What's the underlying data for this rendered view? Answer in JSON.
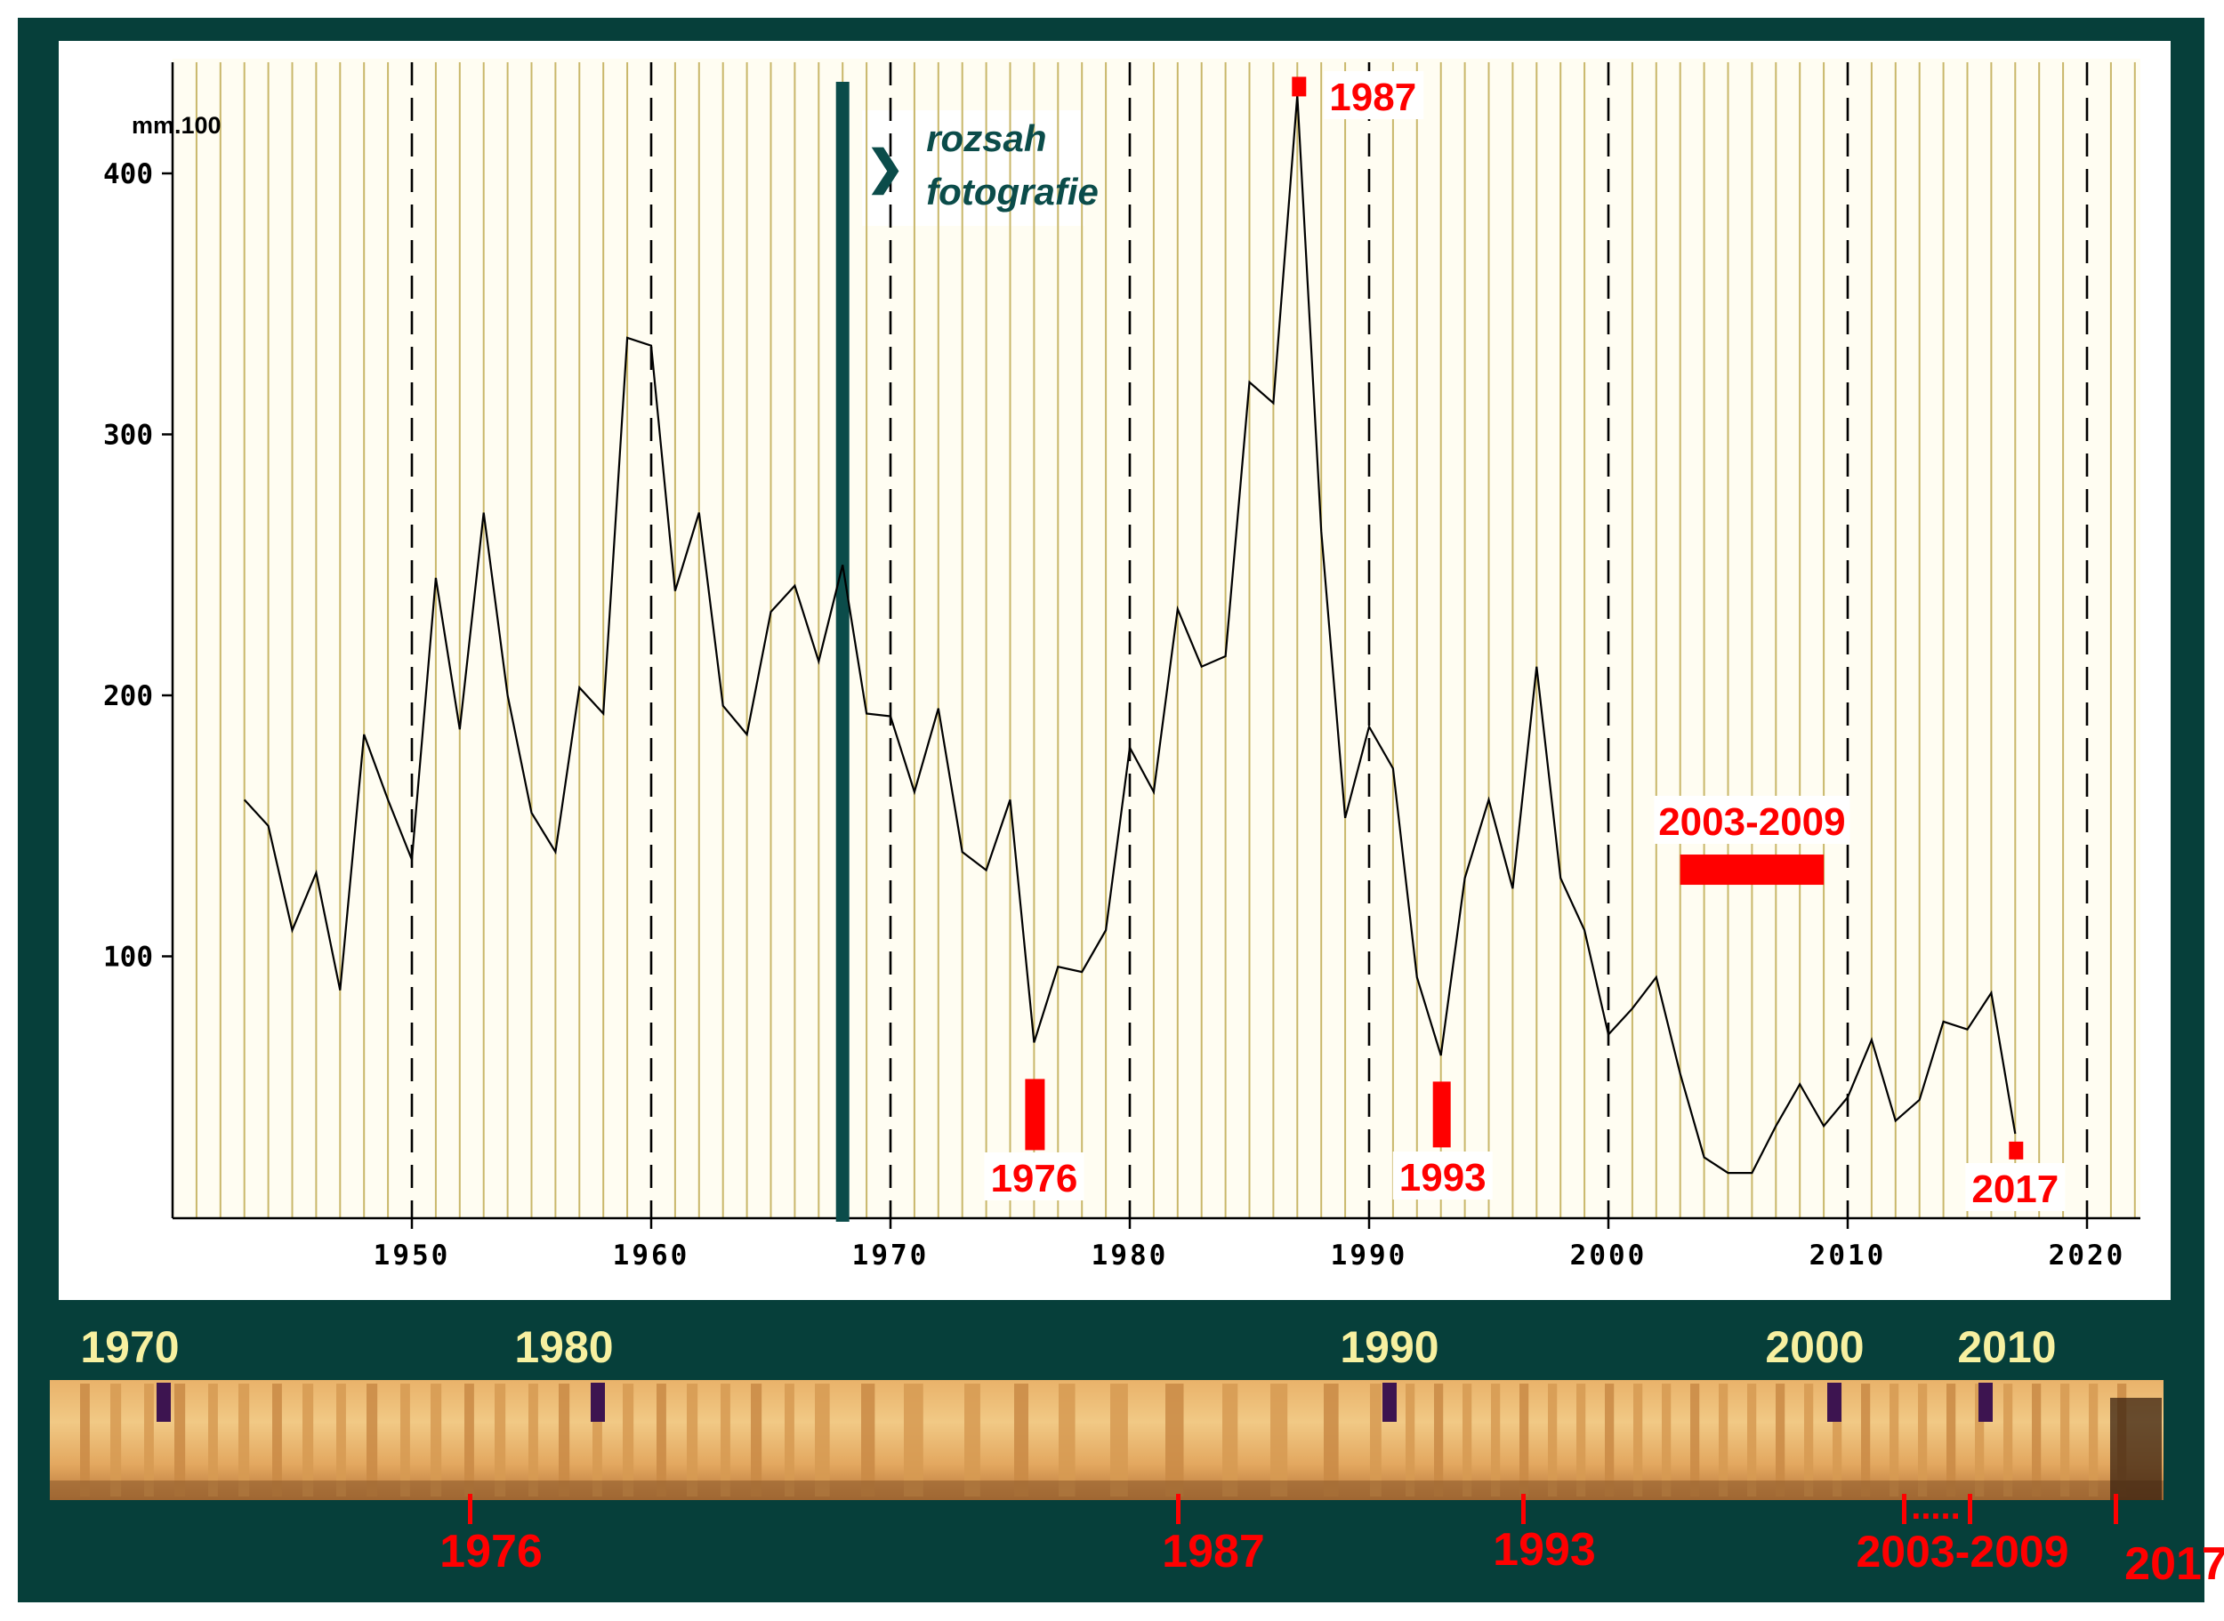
{
  "chart_data": {
    "type": "line",
    "title": "",
    "xlabel": "",
    "ylabel": "mm.100",
    "xlim": [
      1940,
      2022
    ],
    "ylim": [
      0,
      440
    ],
    "x_ticks": [
      1950,
      1960,
      1970,
      1980,
      1990,
      2000,
      2010,
      2020
    ],
    "y_ticks": [
      100,
      200,
      300,
      400
    ],
    "grid": "vertical yearly lines, dashed every decade",
    "background": "#fffdf2",
    "line_color": "#000000",
    "series": [
      {
        "x": [
          1943,
          1944,
          1945,
          1946,
          1947,
          1948,
          1949,
          1950,
          1951,
          1952,
          1953,
          1954,
          1955,
          1956,
          1957,
          1958,
          1959,
          1960,
          1961,
          1962,
          1963,
          1964,
          1965,
          1966,
          1967,
          1968,
          1969,
          1970,
          1971,
          1972,
          1973,
          1974,
          1975,
          1976,
          1977,
          1978,
          1979,
          1980,
          1981,
          1982,
          1983,
          1984,
          1985,
          1986,
          1987,
          1988,
          1989,
          1990,
          1991,
          1992,
          1993,
          1994,
          1995,
          1996,
          1997,
          1998,
          1999,
          2000,
          2001,
          2002,
          2003,
          2004,
          2005,
          2006,
          2007,
          2008,
          2009,
          2010,
          2011,
          2012,
          2013,
          2014,
          2015,
          2016,
          2017
        ],
        "values": [
          160,
          150,
          110,
          132,
          87,
          185,
          160,
          137,
          245,
          187,
          270,
          200,
          155,
          140,
          203,
          193,
          337,
          334,
          240,
          270,
          196,
          185,
          232,
          242,
          213,
          250,
          193,
          192,
          163,
          195,
          140,
          133,
          160,
          67,
          96,
          94,
          110,
          180,
          163,
          233,
          211,
          215,
          320,
          312,
          430,
          263,
          153,
          188,
          172,
          92,
          62,
          130,
          160,
          126,
          211,
          130,
          110,
          70,
          80,
          92,
          55,
          23,
          17,
          17,
          35,
          51,
          35,
          46,
          68,
          37,
          45,
          75,
          72,
          86,
          32
        ]
      }
    ],
    "annotations": {
      "range_label_line1": "rozsah",
      "range_label_line2": "fotografie",
      "range_marker_year": 1968,
      "range_arrow": "❯",
      "marker_1976": "1976",
      "marker_1987": "1987",
      "marker_1993": "1993",
      "marker_2003_2009": "2003-2009",
      "marker_2017": "2017"
    }
  },
  "accent_colors": {
    "frame": "#063f3a",
    "marker_red": "#ff0000",
    "strip_label_yellow": "#f7f0a0",
    "strip_tick_purple": "#3d1450",
    "range_line": "#0b4c4a"
  },
  "strip": {
    "top_labels": [
      "1970",
      "1980",
      "1990",
      "2000",
      "2010"
    ],
    "bottom_labels": [
      "1976",
      "1987",
      "1993",
      "2003-2009",
      "2017"
    ],
    "dots": "....."
  }
}
